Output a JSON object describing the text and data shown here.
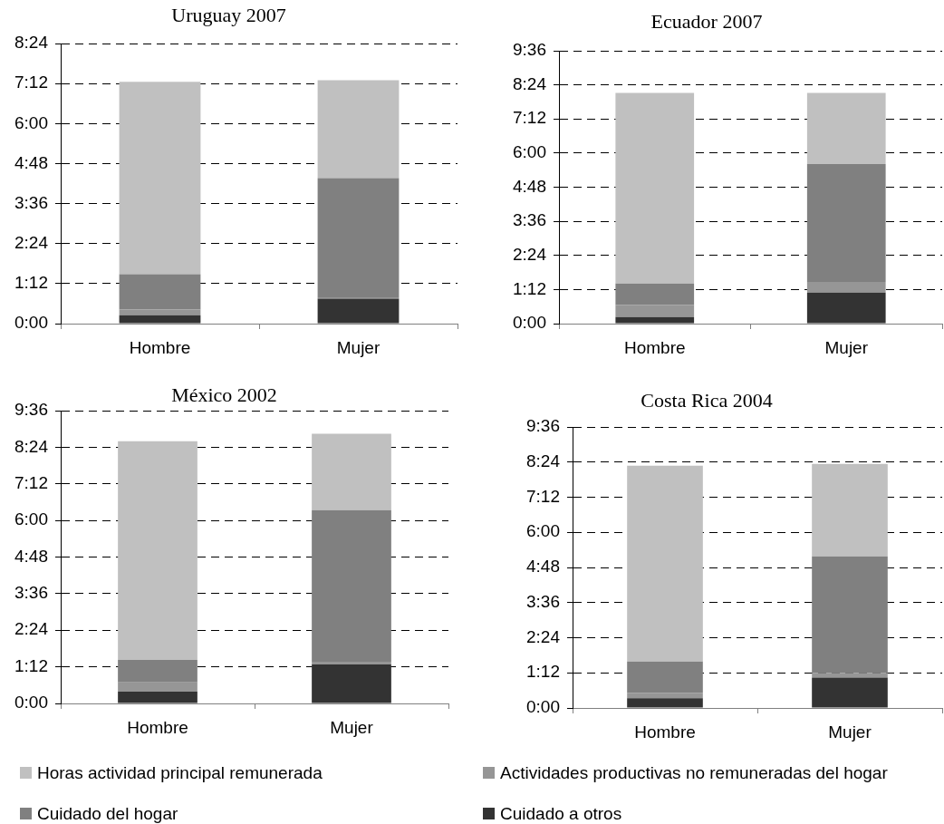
{
  "chart_data": [
    {
      "type": "bar",
      "title": "Uruguay 2007",
      "categories": [
        "Hombre",
        "Mujer"
      ],
      "stacked": true,
      "grid": "y",
      "legend": "bottom",
      "ylim": [
        0,
        8.4
      ],
      "yticks": [
        {
          "value": 0,
          "label": "0:00"
        },
        {
          "value": 1.2,
          "label": "1:12"
        },
        {
          "value": 2.4,
          "label": "2:24"
        },
        {
          "value": 3.6,
          "label": "3:36"
        },
        {
          "value": 4.8,
          "label": "4:48"
        },
        {
          "value": 6,
          "label": "6:00"
        },
        {
          "value": 7.2,
          "label": "7:12"
        },
        {
          "value": 8.4,
          "label": "8:24"
        }
      ],
      "series": [
        {
          "name": "Cuidado a otros",
          "color": "#333333",
          "values": [
            0.25,
            0.75
          ]
        },
        {
          "name": "Actividades productivas no remuneradas del hogar",
          "color": "#969696",
          "values": [
            0.17,
            0.04
          ]
        },
        {
          "name": "Cuidado del hogar",
          "color": "#808080",
          "values": [
            1.06,
            3.57
          ]
        },
        {
          "name": "Horas actividad principal remunerada",
          "color": "#c0c0c0",
          "values": [
            5.77,
            2.94
          ]
        }
      ]
    },
    {
      "type": "bar",
      "title": "Ecuador 2007",
      "categories": [
        "Hombre",
        "Mujer"
      ],
      "stacked": true,
      "grid": "y",
      "ylim": [
        0,
        9.6
      ],
      "yticks": [
        {
          "value": 0,
          "label": "0:00"
        },
        {
          "value": 1.2,
          "label": "1:12"
        },
        {
          "value": 2.4,
          "label": "2:24"
        },
        {
          "value": 3.6,
          "label": "3:36"
        },
        {
          "value": 4.8,
          "label": "4:48"
        },
        {
          "value": 6,
          "label": "6:00"
        },
        {
          "value": 7.2,
          "label": "7:12"
        },
        {
          "value": 8.4,
          "label": "8:24"
        },
        {
          "value": 9.6,
          "label": "9:36"
        }
      ],
      "series": [
        {
          "color": "#333333",
          "values": [
            0.23,
            1.09
          ]
        },
        {
          "color": "#969696",
          "values": [
            0.42,
            0.38
          ]
        },
        {
          "color": "#808080",
          "values": [
            0.76,
            4.14
          ]
        },
        {
          "color": "#c0c0c0",
          "values": [
            6.71,
            2.51
          ]
        }
      ]
    },
    {
      "type": "bar",
      "title": "México 2002",
      "categories": [
        "Hombre",
        "Mujer"
      ],
      "stacked": true,
      "grid": "y",
      "ylim": [
        0,
        9.6
      ],
      "yticks": [
        {
          "value": 0,
          "label": "0:00"
        },
        {
          "value": 1.2,
          "label": "1:12"
        },
        {
          "value": 2.4,
          "label": "2:24"
        },
        {
          "value": 3.6,
          "label": "3:36"
        },
        {
          "value": 4.8,
          "label": "4:48"
        },
        {
          "value": 6,
          "label": "6:00"
        },
        {
          "value": 7.2,
          "label": "7:12"
        },
        {
          "value": 8.4,
          "label": "8:24"
        },
        {
          "value": 9.6,
          "label": "9:36"
        }
      ],
      "series": [
        {
          "color": "#333333",
          "values": [
            0.39,
            1.28
          ]
        },
        {
          "color": "#969696",
          "values": [
            0.3,
            0.09
          ]
        },
        {
          "color": "#808080",
          "values": [
            0.74,
            4.97
          ]
        },
        {
          "color": "#c0c0c0",
          "values": [
            7.17,
            2.5
          ]
        }
      ]
    },
    {
      "type": "bar",
      "title": "Costa Rica 2004",
      "categories": [
        "Hombre",
        "Mujer"
      ],
      "stacked": true,
      "grid": "y",
      "ylim": [
        0,
        9.6
      ],
      "yticks": [
        {
          "value": 0,
          "label": "0:00"
        },
        {
          "value": 1.2,
          "label": "1:12"
        },
        {
          "value": 2.4,
          "label": "2:24"
        },
        {
          "value": 3.6,
          "label": "3:36"
        },
        {
          "value": 4.8,
          "label": "4:48"
        },
        {
          "value": 6,
          "label": "6:00"
        },
        {
          "value": 7.2,
          "label": "7:12"
        },
        {
          "value": 8.4,
          "label": "8:24"
        },
        {
          "value": 9.6,
          "label": "9:36"
        }
      ],
      "series": [
        {
          "color": "#333333",
          "values": [
            0.33,
            1.04
          ]
        },
        {
          "color": "#969696",
          "values": [
            0.19,
            0.16
          ]
        },
        {
          "color": "#808080",
          "values": [
            1.07,
            3.98
          ]
        },
        {
          "color": "#c0c0c0",
          "values": [
            6.69,
            3.16
          ]
        }
      ]
    }
  ]
}
